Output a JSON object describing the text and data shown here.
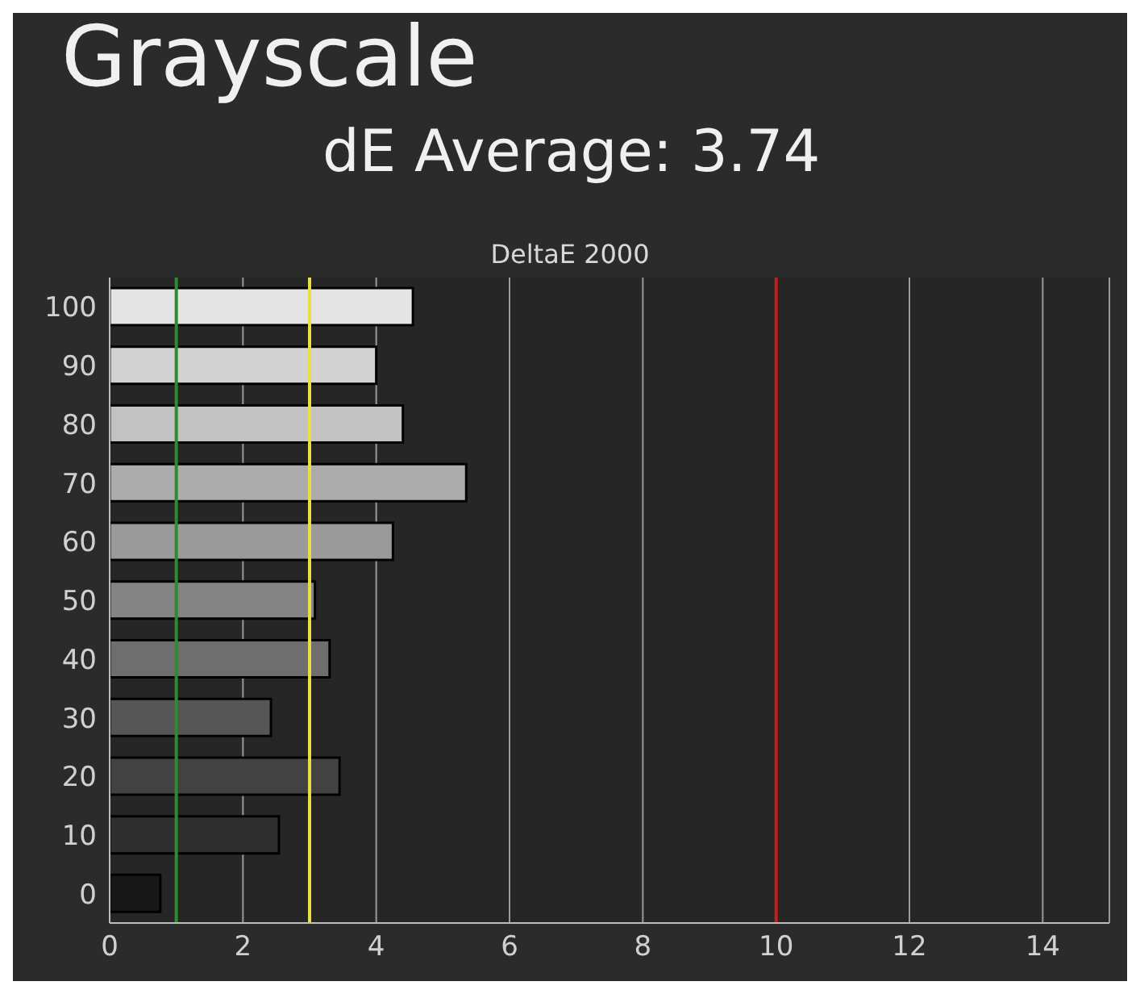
{
  "chart_data": {
    "type": "bar",
    "orientation": "horizontal",
    "title": "Grayscale",
    "subtitle": "dE Average: 3.74",
    "xlabel": "DeltaE 2000",
    "categories": [
      "100",
      "90",
      "80",
      "70",
      "60",
      "50",
      "40",
      "30",
      "20",
      "10",
      "0"
    ],
    "values": [
      4.55,
      4.0,
      4.4,
      5.35,
      4.25,
      3.08,
      3.3,
      2.42,
      3.45,
      2.54,
      0.76
    ],
    "colors": [
      "#e4e4e4",
      "#d2d2d2",
      "#c2c2c2",
      "#acacac",
      "#9a9a9a",
      "#848484",
      "#6e6e6e",
      "#565656",
      "#424242",
      "#2e2e2e",
      "#181818"
    ],
    "xlim": [
      0,
      15
    ],
    "xticks": [
      0,
      2,
      4,
      6,
      8,
      10,
      12,
      14
    ],
    "grid": "x",
    "ref_lines": [
      {
        "axis": "x",
        "value": 1,
        "color": "#2e8b2e"
      },
      {
        "axis": "x",
        "value": 3,
        "color": "#e8e040"
      },
      {
        "axis": "x",
        "value": 10,
        "color": "#c02020"
      }
    ]
  }
}
